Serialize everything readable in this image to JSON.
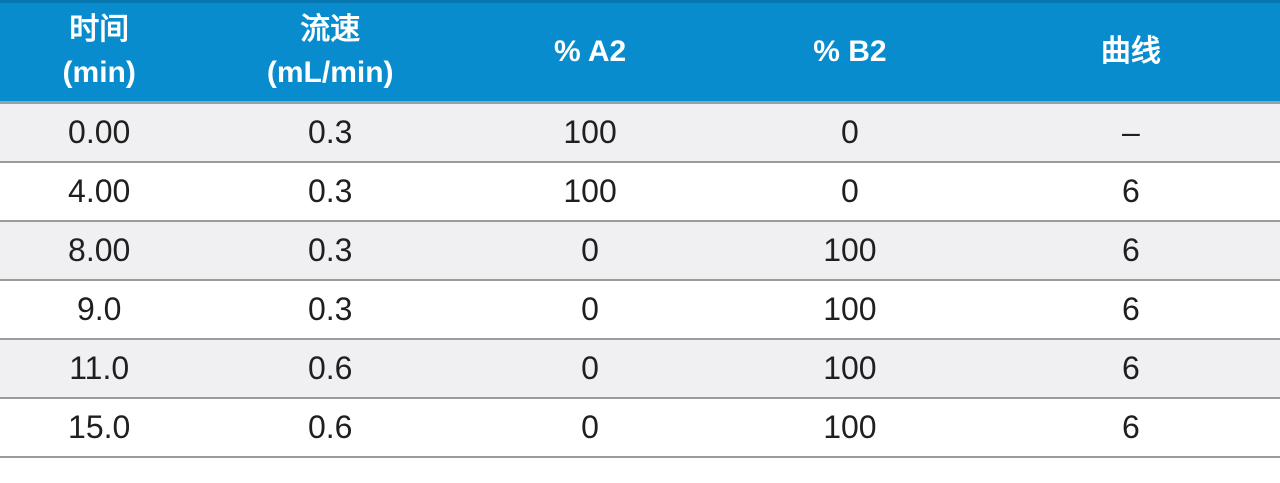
{
  "colors": {
    "header_bg": "#088CCE",
    "header_top_edge": "#0677AF",
    "header_underline": "#8FA3AD",
    "row_separator": "#9B9B9B",
    "row_alt_bg": "#F0F0F2",
    "row_bg": "#FFFFFF",
    "header_text": "#FFFFFF",
    "cell_text": "#1F1F1F"
  },
  "table": {
    "headers": [
      {
        "lines": [
          "时间",
          "(min)"
        ]
      },
      {
        "lines": [
          "流速",
          "(mL/min)"
        ]
      },
      {
        "lines": [
          "% A2"
        ]
      },
      {
        "lines": [
          "% B2"
        ]
      },
      {
        "lines": [
          "曲线"
        ]
      }
    ],
    "rows": [
      [
        "0.00",
        "0.3",
        "100",
        "0",
        "–"
      ],
      [
        "4.00",
        "0.3",
        "100",
        "0",
        "6"
      ],
      [
        "8.00",
        "0.3",
        "0",
        "100",
        "6"
      ],
      [
        "9.0",
        "0.3",
        "0",
        "100",
        "6"
      ],
      [
        "11.0",
        "0.6",
        "0",
        "100",
        "6"
      ],
      [
        "15.0",
        "0.6",
        "0",
        "100",
        "6"
      ]
    ]
  },
  "chart_data": {
    "type": "table",
    "title": "",
    "columns": [
      "时间 (min)",
      "流速 (mL/min)",
      "% A2",
      "% B2",
      "曲线"
    ],
    "rows": [
      [
        "0.00",
        "0.3",
        "100",
        "0",
        "–"
      ],
      [
        "4.00",
        "0.3",
        "100",
        "0",
        "6"
      ],
      [
        "8.00",
        "0.3",
        "0",
        "100",
        "6"
      ],
      [
        "9.0",
        "0.3",
        "0",
        "100",
        "6"
      ],
      [
        "11.0",
        "0.6",
        "0",
        "100",
        "6"
      ],
      [
        "15.0",
        "0.6",
        "0",
        "100",
        "6"
      ]
    ],
    "layout_hints": {
      "header_style": "blue banner, white bold text, two-line labels for first two columns",
      "row_striping": "odd rows light gray, even rows white",
      "alignment": "center"
    }
  }
}
